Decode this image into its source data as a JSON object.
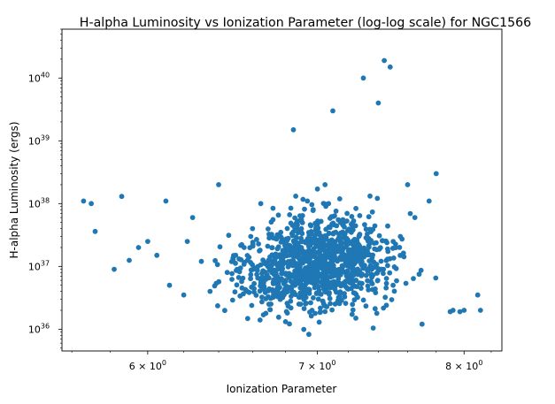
{
  "chart_data": {
    "type": "scatter",
    "title": "H-alpha Luminosity vs Ionization Parameter (log-log scale) for NGC1566",
    "xlabel": "Ionization Parameter",
    "ylabel": "H-alpha Luminosity (ergs)",
    "xscale": "log",
    "yscale": "log",
    "xlim": [
      5.55,
      8.28
    ],
    "ylim": [
      4.5e+35,
      6e+40
    ],
    "xticks": [
      {
        "value": 6,
        "label": "6 × 10",
        "exp": "0"
      },
      {
        "value": 7,
        "label": "7 × 10",
        "exp": "0"
      },
      {
        "value": 8,
        "label": "8 × 10",
        "exp": "0"
      }
    ],
    "yticks": [
      {
        "value": 1e+36,
        "label": "10",
        "exp": "36"
      },
      {
        "value": 1e+37,
        "label": "10",
        "exp": "37"
      },
      {
        "value": 1e+38,
        "label": "10",
        "exp": "38"
      },
      {
        "value": 1e+39,
        "label": "10",
        "exp": "39"
      },
      {
        "value": 1e+40,
        "label": "10",
        "exp": "40"
      }
    ],
    "marker_color": "#1f77b4",
    "grid": false,
    "legend": "none",
    "x": [
      5.66,
      5.7,
      5.72,
      5.82,
      5.86,
      5.9,
      5.95,
      6.0,
      6.05,
      6.1,
      6.12,
      6.2,
      6.22,
      6.25,
      6.3,
      6.35,
      6.4,
      7.44,
      7.48,
      7.68,
      7.9,
      7.92,
      7.97,
      8.0,
      8.1,
      8.12,
      7.4,
      7.3,
      7.1,
      6.85,
      7.05,
      7.0,
      6.95,
      7.2,
      7.25,
      6.7,
      7.5,
      7.6,
      7.55,
      7.7,
      7.75,
      7.8,
      7.65,
      6.6,
      6.55,
      6.5,
      6.45,
      6.65,
      6.75,
      6.8,
      6.9,
      7.15,
      7.35
    ],
    "y": [
      1.1e+38,
      1e+38,
      3.6e+37,
      9e+36,
      1.3e+38,
      1.25e+37,
      2e+37,
      2.5e+37,
      1.5e+37,
      1.1e+38,
      5e+36,
      3.5e+36,
      2.5e+37,
      6e+37,
      1.2e+37,
      4e+36,
      2e+38,
      1.9e+40,
      1.5e+40,
      7.5e+36,
      1.9e+36,
      2e+36,
      1.9e+36,
      2e+36,
      3.5e+36,
      2e+36,
      4e+39,
      1e+40,
      3e+39,
      1.5e+39,
      2e+38,
      4e+37,
      8e+36,
      1.2e+37,
      1.5e+36,
      2.5e+36,
      5e+36,
      2e+38,
      3e+37,
      1.2e+36,
      1.1e+38,
      3e+38,
      6e+37,
      4e+37,
      2e+37,
      1.5e+37,
      8e+36,
      1e+38,
      3e+37,
      6e+36,
      2e+37,
      5e+37,
      1e+37
    ]
  }
}
